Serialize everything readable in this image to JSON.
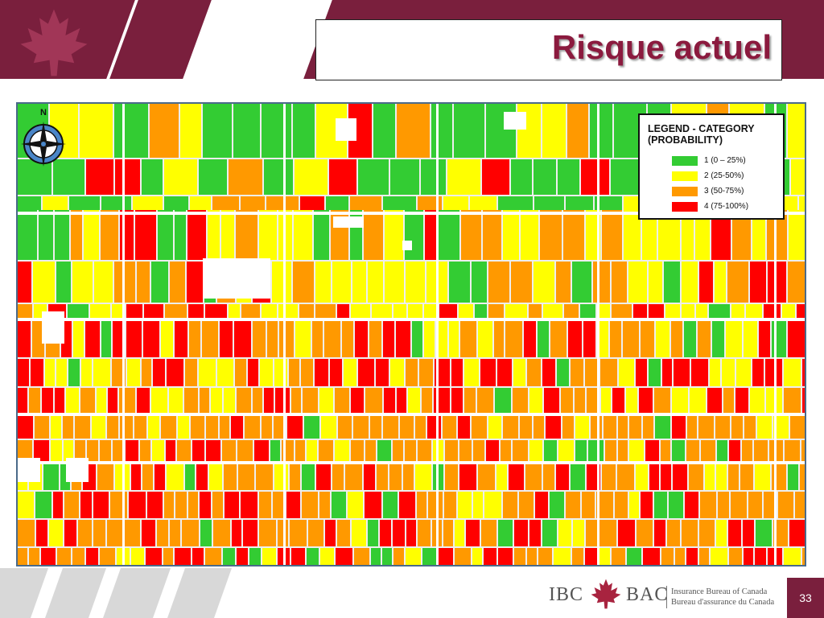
{
  "slide": {
    "title": "Risque actuel",
    "page_number": "33"
  },
  "map": {
    "compass_letter": "N",
    "legend": {
      "title": "LEGEND - CATEGORY\n(PROBABILITY)",
      "items": [
        {
          "label": "1 (0 – 25%)",
          "color": "#33cc33"
        },
        {
          "label": "2 (25-50%)",
          "color": "#ffff00"
        },
        {
          "label": "3 (50-75%)",
          "color": "#ff9900"
        },
        {
          "label": "4 (75-100%)",
          "color": "#ff0000"
        }
      ]
    }
  },
  "logo": {
    "ibc": "IBC",
    "bac": "BAC",
    "line1": "Insurance Bureau of Canada",
    "line2": "Bureau d'assurance du Canada"
  },
  "colors": {
    "brand": "#7a1f3d",
    "title": "#8b1a3e",
    "road": "#ffffff"
  },
  "icons": [
    "maple-leaf-icon",
    "compass-icon"
  ]
}
